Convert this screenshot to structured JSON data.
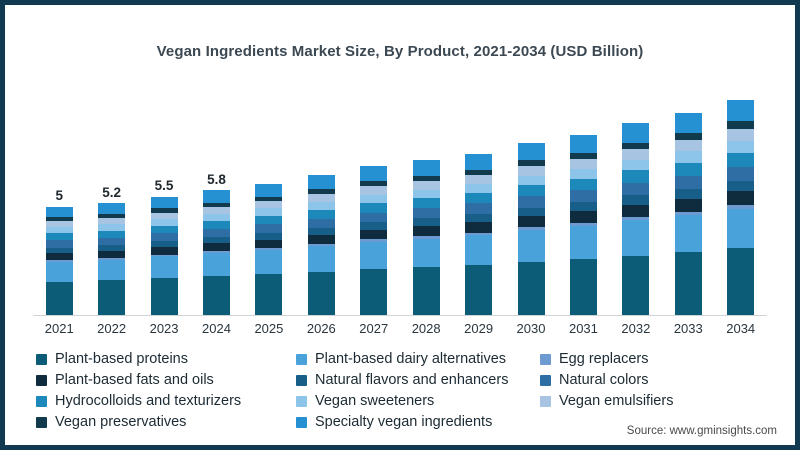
{
  "title": "Vegan Ingredients Market Size, By Product, 2021-2034 (USD Billion)",
  "source": "Source: www.gminsights.com",
  "frame": {
    "border_color": "#113A50",
    "background": "#FFFFFF"
  },
  "chart_data": {
    "type": "bar",
    "stacked": true,
    "title": "Vegan Ingredients Market Size, By Product, 2021-2034 (USD Billion)",
    "xlabel": "",
    "ylabel": "USD Billion",
    "y_axis_visible": false,
    "grid": false,
    "legend_position": "bottom",
    "x_axis_line_color": "#CFD4D6",
    "categories": [
      "2021",
      "2022",
      "2023",
      "2024",
      "2025",
      "2026",
      "2027",
      "2028",
      "2029",
      "2030",
      "2031",
      "2032",
      "2033",
      "2034"
    ],
    "totals": [
      5,
      5.2,
      5.5,
      5.8,
      6.1,
      6.5,
      6.9,
      7.2,
      7.5,
      8.0,
      8.4,
      8.9,
      9.4,
      10.0
    ],
    "bar_labels": [
      "5",
      "5.2",
      "5.5",
      "5.8",
      null,
      null,
      null,
      null,
      null,
      null,
      null,
      null,
      null,
      null
    ],
    "series": [
      {
        "name": "Plant-based proteins",
        "color": "#0D5C77",
        "values": [
          1.55,
          1.61,
          1.71,
          1.8,
          1.89,
          2.02,
          2.14,
          2.23,
          2.33,
          2.48,
          2.6,
          2.76,
          2.91,
          3.1
        ]
      },
      {
        "name": "Plant-based dairy alternatives",
        "color": "#4AA2DB",
        "values": [
          0.93,
          0.96,
          1.02,
          1.07,
          1.13,
          1.2,
          1.28,
          1.33,
          1.39,
          1.48,
          1.55,
          1.65,
          1.74,
          1.85
        ]
      },
      {
        "name": "Egg replacers",
        "color": "#6D9BD1",
        "values": [
          0.08,
          0.08,
          0.08,
          0.09,
          0.09,
          0.1,
          0.1,
          0.11,
          0.11,
          0.12,
          0.13,
          0.13,
          0.14,
          0.15
        ]
      },
      {
        "name": "Plant-based fats and oils",
        "color": "#0E2C3E",
        "values": [
          0.33,
          0.34,
          0.36,
          0.38,
          0.4,
          0.42,
          0.45,
          0.47,
          0.49,
          0.52,
          0.55,
          0.58,
          0.61,
          0.65
        ]
      },
      {
        "name": "Natural flavors and enhancers",
        "color": "#175E89",
        "values": [
          0.25,
          0.26,
          0.28,
          0.29,
          0.31,
          0.33,
          0.35,
          0.36,
          0.38,
          0.4,
          0.42,
          0.45,
          0.47,
          0.5
        ]
      },
      {
        "name": "Natural colors",
        "color": "#2F6EA4",
        "values": [
          0.33,
          0.34,
          0.36,
          0.38,
          0.4,
          0.42,
          0.45,
          0.47,
          0.49,
          0.52,
          0.55,
          0.58,
          0.61,
          0.65
        ]
      },
      {
        "name": "Hydrocolloids and texturizers",
        "color": "#1C89BA",
        "values": [
          0.33,
          0.34,
          0.36,
          0.38,
          0.4,
          0.42,
          0.45,
          0.47,
          0.49,
          0.52,
          0.55,
          0.58,
          0.61,
          0.65
        ]
      },
      {
        "name": "Vegan sweeteners",
        "color": "#8CC5E9",
        "values": [
          0.28,
          0.29,
          0.3,
          0.32,
          0.34,
          0.36,
          0.38,
          0.4,
          0.41,
          0.44,
          0.46,
          0.49,
          0.52,
          0.55
        ]
      },
      {
        "name": "Vegan emulsifiers",
        "color": "#A7C4E2",
        "values": [
          0.28,
          0.29,
          0.3,
          0.32,
          0.34,
          0.36,
          0.38,
          0.4,
          0.41,
          0.44,
          0.46,
          0.49,
          0.52,
          0.55
        ]
      },
      {
        "name": "Vegan preservatives",
        "color": "#113B4C",
        "values": [
          0.18,
          0.18,
          0.19,
          0.2,
          0.21,
          0.23,
          0.24,
          0.25,
          0.26,
          0.28,
          0.29,
          0.31,
          0.33,
          0.35
        ]
      },
      {
        "name": "Specialty vegan ingredients",
        "color": "#2590D2",
        "values": [
          0.5,
          0.52,
          0.55,
          0.58,
          0.61,
          0.65,
          0.69,
          0.72,
          0.75,
          0.8,
          0.84,
          0.89,
          0.94,
          1.0
        ]
      }
    ]
  }
}
